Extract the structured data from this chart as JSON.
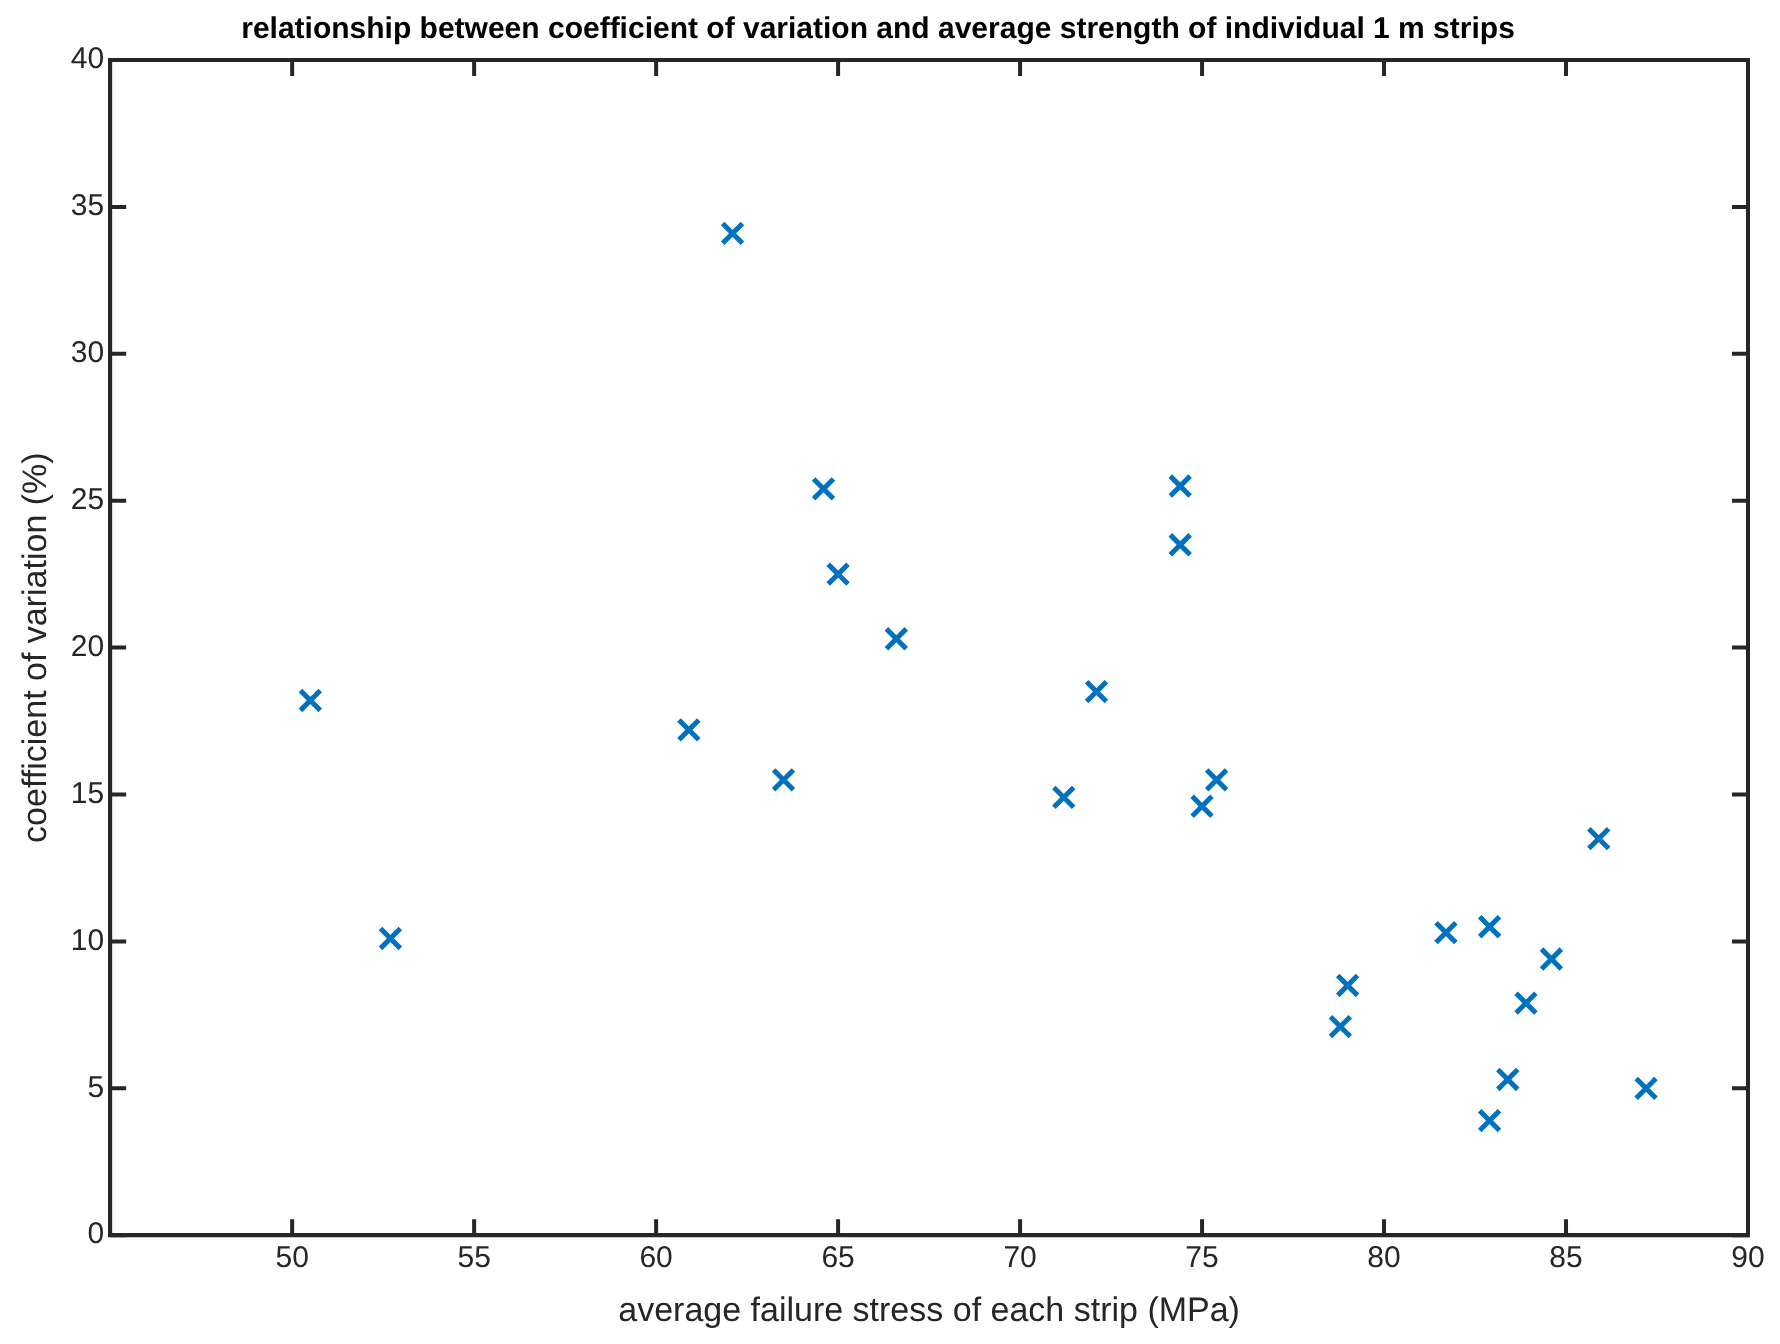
{
  "chart_data": {
    "type": "scatter",
    "title": "relationship between coefficient of variation and average strength of individual 1 m strips",
    "xlabel": "average failure stress of each strip (MPa)",
    "ylabel": "coefficient of variation (%)",
    "x": [
      50.5,
      52.7,
      60.9,
      62.1,
      63.5,
      64.6,
      65.0,
      66.6,
      71.2,
      72.1,
      74.4,
      74.4,
      75.0,
      75.4,
      78.8,
      79.0,
      81.7,
      82.9,
      82.9,
      83.4,
      83.9,
      84.6,
      85.9,
      87.2
    ],
    "series": [
      {
        "color": "#0072bd",
        "values": [
          18.2,
          10.1,
          17.2,
          34.1,
          15.5,
          25.4,
          22.5,
          20.3,
          14.9,
          18.5,
          25.5,
          23.5,
          14.6,
          15.5,
          7.1,
          8.5,
          10.3,
          10.5,
          3.9,
          5.3,
          7.9,
          9.4,
          13.5,
          5.0
        ]
      }
    ],
    "xlim": [
      45,
      90
    ],
    "xticks": [
      50,
      55,
      60,
      65,
      70,
      75,
      80,
      85,
      90
    ],
    "ylim": [
      0,
      40
    ],
    "yticks": [
      0,
      5,
      10,
      15,
      20,
      25,
      30,
      35,
      40
    ],
    "marker": "cross",
    "grid": false,
    "legend": false
  }
}
